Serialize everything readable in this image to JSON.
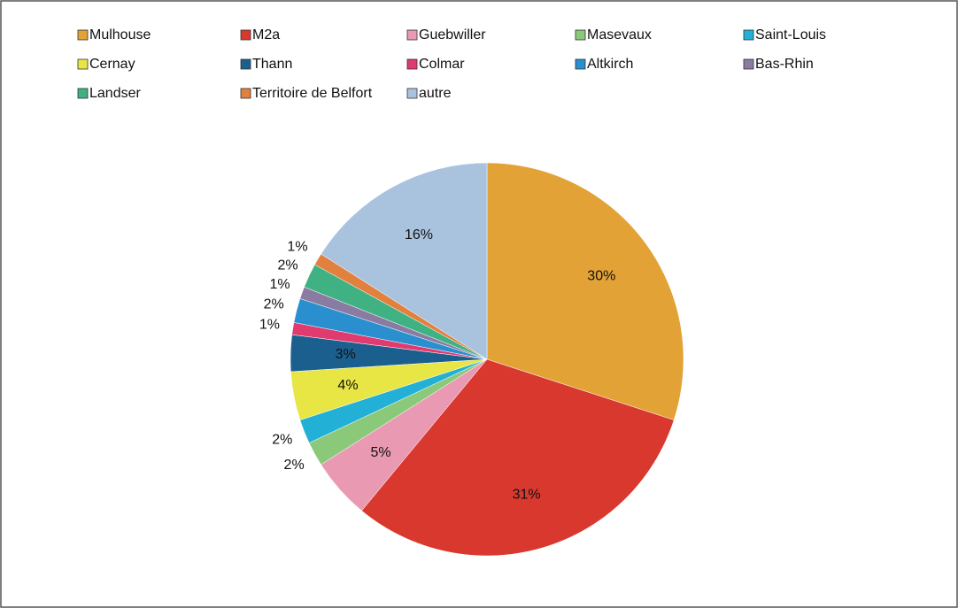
{
  "chart_data": {
    "type": "pie",
    "categories": [
      "Mulhouse",
      "M2a",
      "Guebwiller",
      "Masevaux",
      "Saint-Louis",
      "Cernay",
      "Thann",
      "Colmar",
      "Altkirch",
      "Bas-Rhin",
      "Landser",
      "Territoire de Belfort",
      "autre"
    ],
    "values": [
      30,
      31,
      5,
      2,
      2,
      4,
      3,
      1,
      2,
      1,
      2,
      1,
      16
    ],
    "value_labels": [
      "30%",
      "31%",
      "5%",
      "2%",
      "2%",
      "4%",
      "3%",
      "1%",
      "2%",
      "1%",
      "2%",
      "1%",
      "16%"
    ],
    "colors": [
      "#e2a236",
      "#d9382f",
      "#e99ab2",
      "#8bc97a",
      "#22b0d6",
      "#e8e644",
      "#1b5f8f",
      "#e03a6e",
      "#2a8fcf",
      "#8a7ba2",
      "#3fb183",
      "#e2803f",
      "#a9c3df"
    ],
    "legend": "top"
  }
}
